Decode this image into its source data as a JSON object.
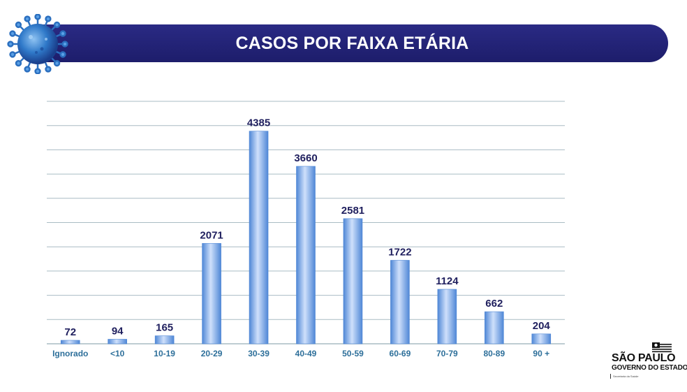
{
  "title": "CASOS POR FAIXA ETÁRIA",
  "colors": {
    "banner": "#22227a",
    "bar_light": "#cfe0fb",
    "bar_dark": "#4f87d6",
    "value_label": "#1f1f5e",
    "tick_label": "#2d6f9a",
    "grid": "#a9bcc4"
  },
  "icons": {
    "virus": "coronavirus-icon"
  },
  "logo": {
    "name": "SÃO PAULO",
    "subtitle": "GOVERNO DO ESTADO",
    "department": "Secretaria da Saúde"
  },
  "chart_data": {
    "type": "bar",
    "title": "CASOS POR FAIXA ETÁRIA",
    "categories": [
      "Ignorado",
      "<10",
      "10-19",
      "20-29",
      "30-39",
      "40-49",
      "50-59",
      "60-69",
      "70-79",
      "80-89",
      "90 +"
    ],
    "values": [
      72,
      94,
      165,
      2071,
      4385,
      3660,
      2581,
      1722,
      1124,
      662,
      204
    ],
    "xlabel": "",
    "ylabel": "",
    "ylim": [
      0,
      5000
    ],
    "grid": true,
    "legend": "none",
    "data_labels": true
  }
}
